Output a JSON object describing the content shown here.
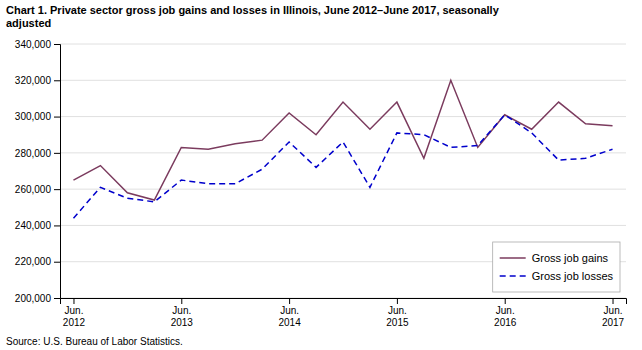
{
  "chart_data": {
    "type": "line",
    "title": "Chart 1. Private sector gross job gains and losses  in Illinois, June 2012–June 2017, seasonally\nadjusted",
    "annotations": [
      "Source: U.S. Bureau of Labor Statistics."
    ],
    "categories": [
      "Jun.\n2012",
      null,
      null,
      null,
      "Jun.\n2013",
      null,
      null,
      null,
      "Jun.\n2014",
      null,
      null,
      null,
      "Jun.\n2015",
      null,
      null,
      null,
      "Jun.\n2016",
      null,
      null,
      null,
      "Jun.\n2017"
    ],
    "series": [
      {
        "name": "Gross job gains",
        "color": "#7B3B5E",
        "line_style": "solid",
        "values": [
          265000,
          273000,
          258000,
          254000,
          283000,
          282000,
          285000,
          287000,
          302000,
          290000,
          308000,
          293000,
          308000,
          277000,
          320000,
          283000,
          301000,
          293000,
          308000,
          296000,
          295000
        ]
      },
      {
        "name": "Gross job losses",
        "color": "#0000CC",
        "line_style": "dashed",
        "values": [
          244000,
          261000,
          255000,
          253000,
          265000,
          263000,
          263000,
          271000,
          286000,
          272000,
          286000,
          261000,
          291000,
          290000,
          283000,
          284000,
          301000,
          291000,
          276000,
          277000,
          282000
        ]
      }
    ],
    "ylim": [
      200000,
      340000
    ],
    "yticks": [
      {
        "value": 200000,
        "label": "200,000"
      },
      {
        "value": 220000,
        "label": "220,000"
      },
      {
        "value": 240000,
        "label": "240,000"
      },
      {
        "value": 260000,
        "label": "260,000"
      },
      {
        "value": 280000,
        "label": "280,000"
      },
      {
        "value": 300000,
        "label": "300,000"
      },
      {
        "value": 320000,
        "label": "320,000"
      },
      {
        "value": 340000,
        "label": "340,000"
      }
    ],
    "grid": true,
    "legend": "lower right"
  }
}
